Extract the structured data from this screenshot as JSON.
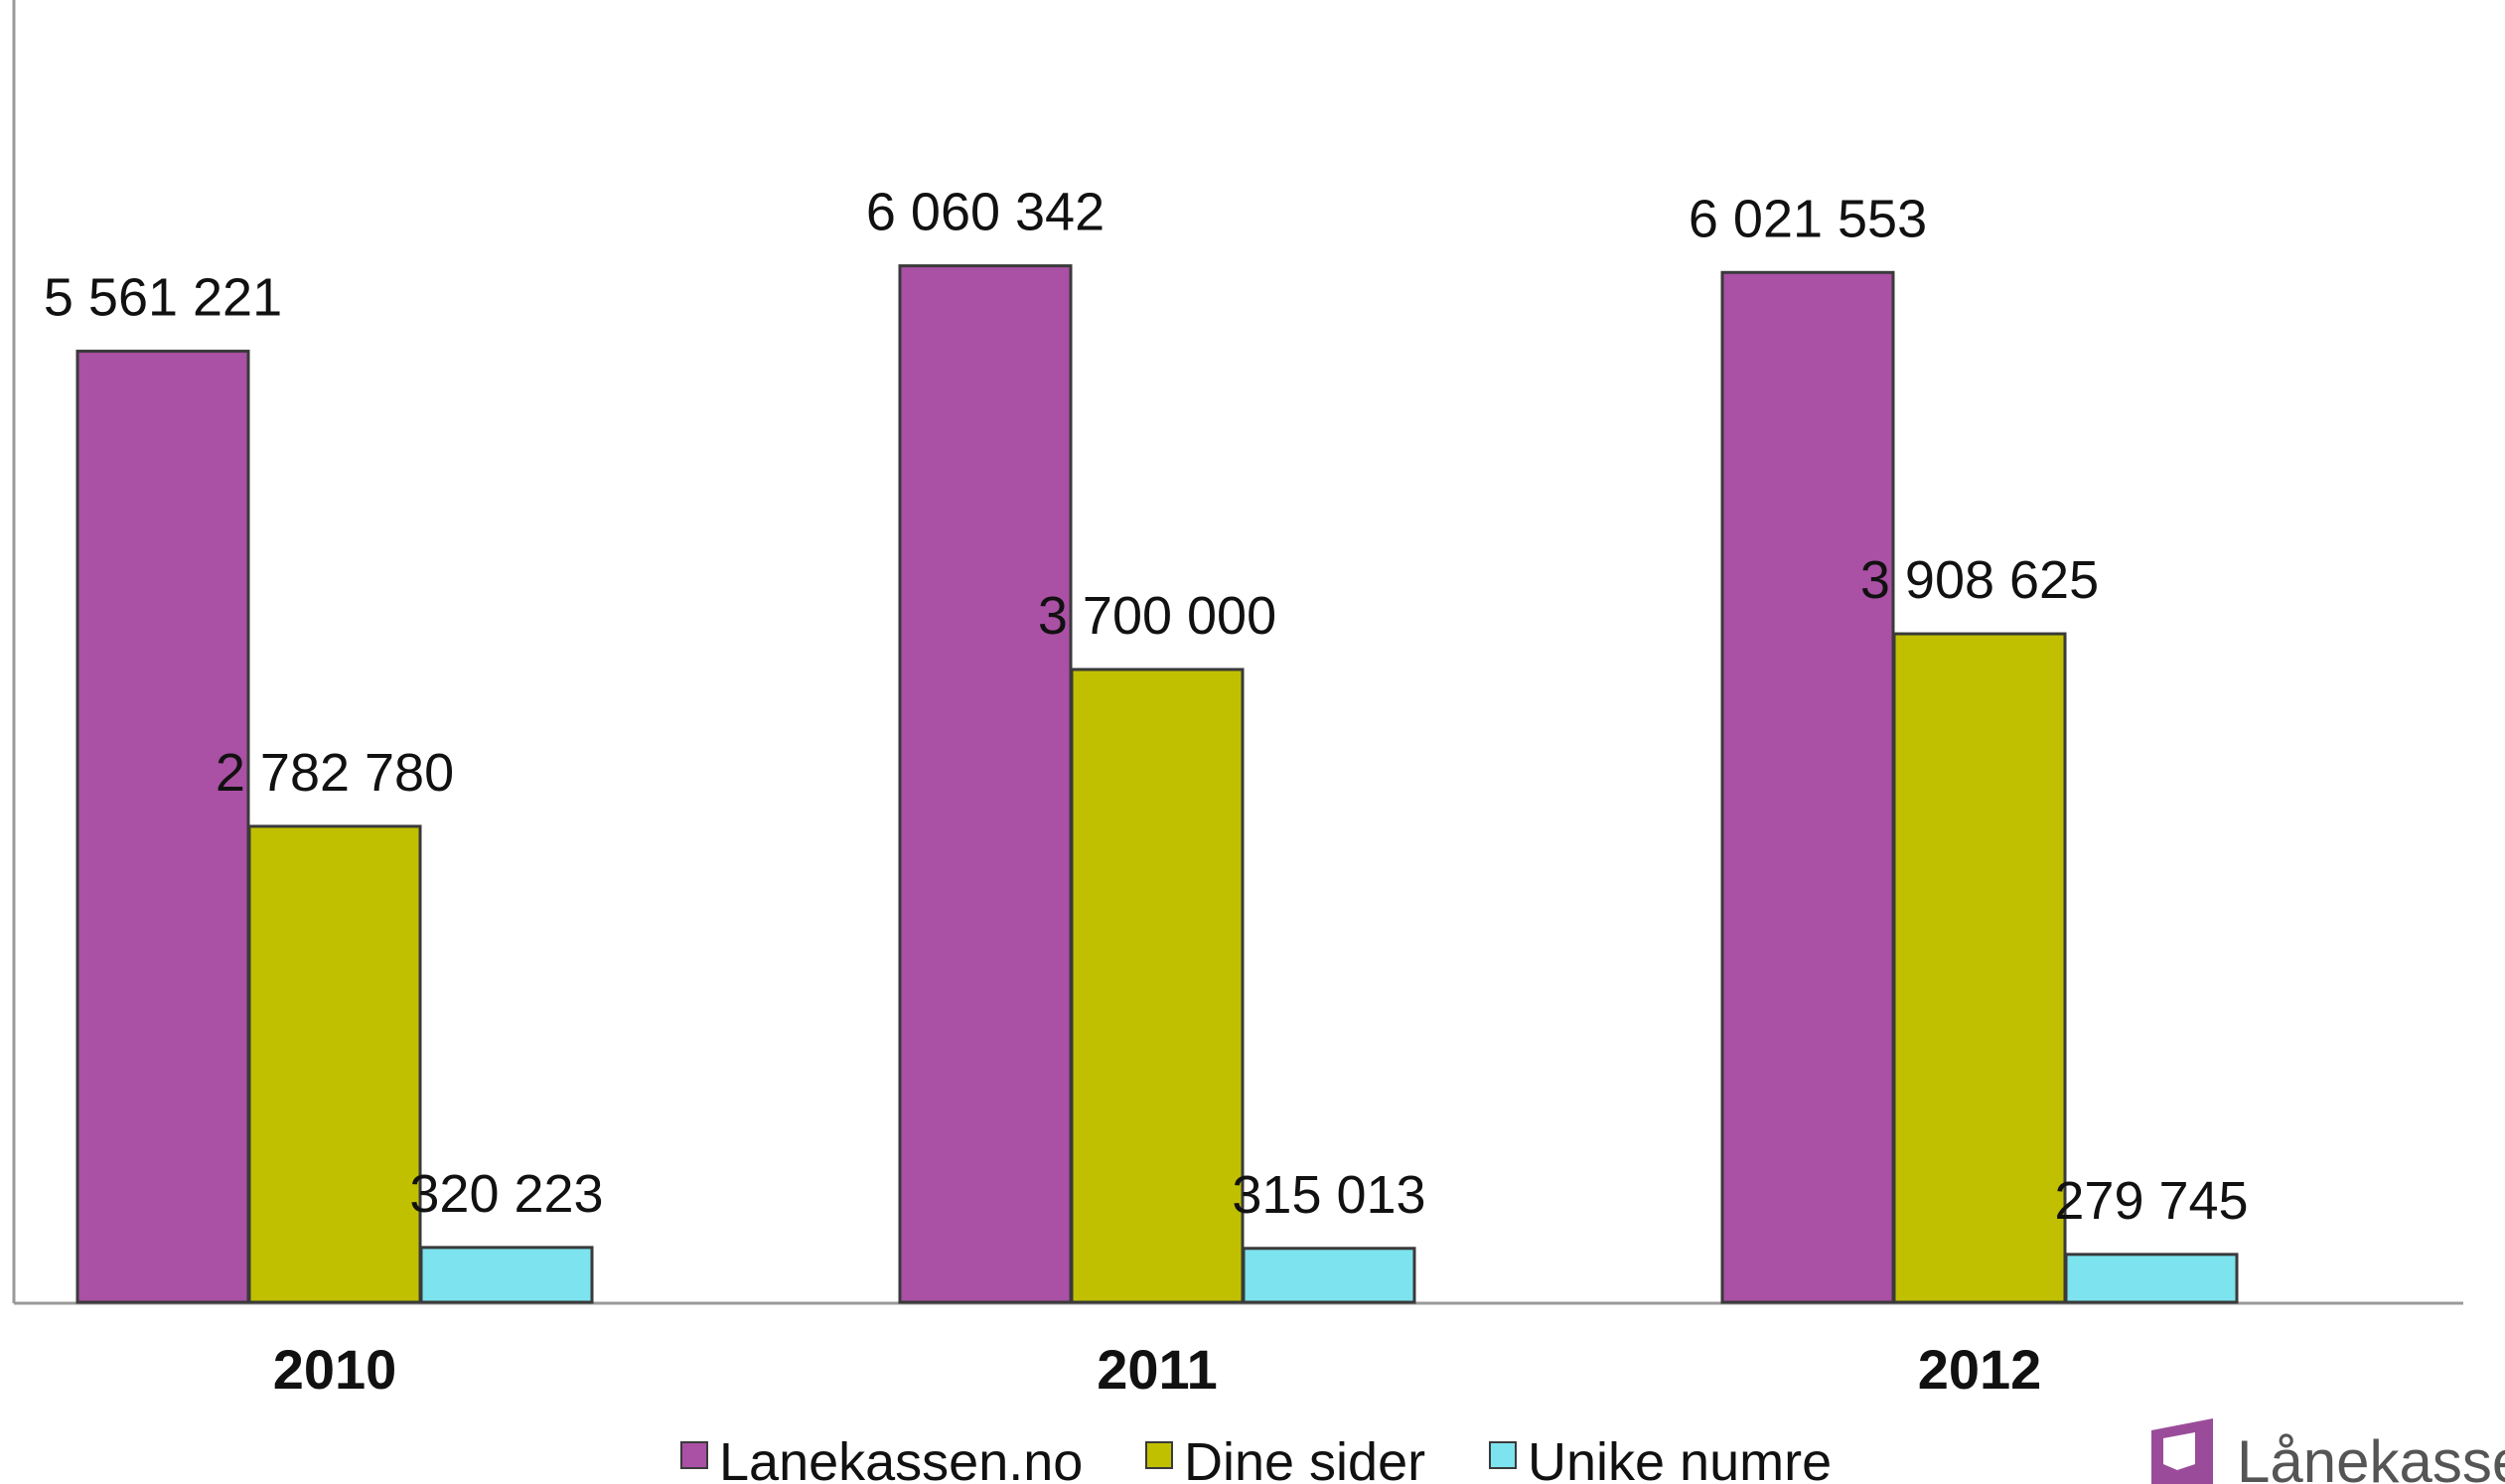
{
  "chart_data": {
    "type": "bar",
    "categories": [
      "2010",
      "2011",
      "2012"
    ],
    "series": [
      {
        "name": "Lanekassen.no",
        "values": [
          5561221,
          6060342,
          6021553
        ],
        "labels": [
          "5 561 221",
          "6 060 342",
          "6 021 553"
        ],
        "color": "#AA50A5"
      },
      {
        "name": "Dine sider",
        "values": [
          2782780,
          3700000,
          3908625
        ],
        "labels": [
          "2 782 780",
          "3 700 000",
          "3 908 625"
        ],
        "color": "#C0C000"
      },
      {
        "name": "Unike numre",
        "values": [
          320223,
          315013,
          279745
        ],
        "labels": [
          "320 223",
          "315 013",
          "279 745"
        ],
        "color": "#7DE3EE"
      }
    ],
    "legend_labels": [
      "Lanekassen.no",
      "Dine sider",
      "Unike numre"
    ],
    "ylim": [
      0,
      6500000
    ],
    "grid": false,
    "legend_position": "bottom-center"
  },
  "logo": {
    "text": "Lånekassen",
    "icon": "lanekassen-logo-icon",
    "color": "#8E3E8E"
  }
}
